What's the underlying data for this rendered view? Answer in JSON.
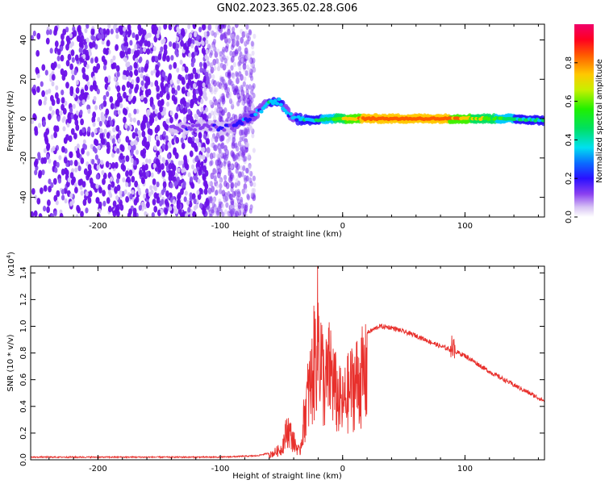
{
  "title": "GN02.2023.365.02.28.G06",
  "colors": {
    "snr_line": "#e8302c",
    "scatter_low": "#d8c8f6",
    "scatter_mid": "#8c50f0",
    "scatter_high": "#6a10e8"
  },
  "chart_data": [
    {
      "type": "heatmap",
      "xlabel": "Height of straight line (km)",
      "ylabel": "Frequency (Hz)",
      "xlim": [
        -255,
        165
      ],
      "ylim": [
        -50,
        48
      ],
      "xticks": [
        -200,
        -100,
        0,
        100
      ],
      "xtick_labels": [
        "-200",
        "-100",
        "0",
        "100"
      ],
      "yticks": [
        -40,
        -20,
        0,
        20,
        40
      ],
      "ytick_labels": [
        "-40",
        "-20",
        "0",
        "20",
        "40"
      ],
      "colorbar": {
        "label": "Normalized spectral amplitude",
        "range": [
          0,
          1
        ],
        "ticks": [
          0,
          0.2,
          0.4,
          0.6,
          0.8
        ],
        "tick_labels": [
          "0.0",
          "0.2",
          "0.4",
          "0.6",
          "0.8"
        ]
      },
      "noise_region_x": [
        -255,
        -90
      ],
      "ridge": [
        {
          "x": -140,
          "y": -5,
          "a": 0.2
        },
        {
          "x": -130,
          "y": -5,
          "a": 0.22
        },
        {
          "x": -110,
          "y": -4,
          "a": 0.2
        },
        {
          "x": -100,
          "y": -5,
          "a": 0.28
        },
        {
          "x": -90,
          "y": -4,
          "a": 0.3
        },
        {
          "x": -80,
          "y": -1,
          "a": 0.3
        },
        {
          "x": -70,
          "y": 3,
          "a": 0.35
        },
        {
          "x": -60,
          "y": 8,
          "a": 0.4
        },
        {
          "x": -52,
          "y": 9,
          "a": 0.42
        },
        {
          "x": -45,
          "y": 3,
          "a": 0.38
        },
        {
          "x": -38,
          "y": 0,
          "a": 0.4
        },
        {
          "x": -25,
          "y": -1,
          "a": 0.45
        },
        {
          "x": -10,
          "y": 0,
          "a": 0.55
        },
        {
          "x": 0,
          "y": 0,
          "a": 0.7
        },
        {
          "x": 20,
          "y": 0,
          "a": 0.9
        },
        {
          "x": 50,
          "y": 0,
          "a": 0.95
        },
        {
          "x": 80,
          "y": 0,
          "a": 0.9
        },
        {
          "x": 110,
          "y": 0,
          "a": 0.7
        },
        {
          "x": 140,
          "y": 0,
          "a": 0.5
        },
        {
          "x": 165,
          "y": -1,
          "a": 0.45
        }
      ]
    },
    {
      "type": "line",
      "xlabel": "Height of straight line (km)",
      "ylabel": "SNR (10 * v/v)",
      "y_multiplier": "(x10",
      "y_multiplier_exp": "4",
      "y_multiplier_close": ")",
      "xlim": [
        -255,
        165
      ],
      "ylim": [
        0,
        1.45
      ],
      "xticks": [
        -200,
        -100,
        0,
        100
      ],
      "xtick_labels": [
        "-200",
        "-100",
        "0",
        "100"
      ],
      "yticks": [
        0,
        0.2,
        0.4,
        0.6,
        0.8,
        1.0,
        1.2,
        1.4
      ],
      "ytick_labels": [
        "0.0",
        "0.2",
        "0.4",
        "0.6",
        "0.8",
        "1.0",
        "1.2",
        "1.4"
      ],
      "series": [
        {
          "x": [
            -255,
            -150,
            -100,
            -70,
            -60,
            -50,
            -45,
            -40,
            -35,
            -30,
            -25,
            -20,
            -15,
            -10,
            -5,
            0,
            5,
            10,
            20,
            30,
            40,
            50,
            60,
            70,
            80,
            90,
            100,
            120,
            140,
            165
          ],
          "y": [
            0.02,
            0.02,
            0.02,
            0.03,
            0.05,
            0.12,
            0.35,
            0.2,
            0.08,
            0.6,
            0.9,
            1.4,
            0.8,
            1.0,
            0.7,
            0.6,
            0.75,
            0.85,
            0.95,
            1.0,
            0.99,
            0.96,
            0.93,
            0.89,
            0.85,
            0.82,
            0.78,
            0.66,
            0.56,
            0.44
          ]
        }
      ]
    }
  ]
}
